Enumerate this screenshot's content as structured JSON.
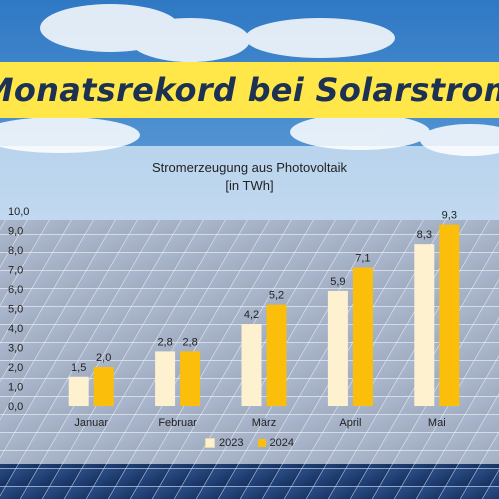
{
  "headline": "Monatsrekord bei Solarstrom",
  "colors": {
    "banner": "#ffe74a",
    "headline_text": "#1d3152",
    "series_2023": "#fdf1cf",
    "series_2024": "#fbbf0b"
  },
  "chart_data": {
    "type": "bar",
    "title": "Stromerzeugung  aus Photovoltaik",
    "subtitle": "[in TWh]",
    "categories": [
      "Januar",
      "Februar",
      "März",
      "April",
      "Mai"
    ],
    "series": [
      {
        "name": "2023",
        "values": [
          1.5,
          2.8,
          4.2,
          5.9,
          8.3
        ],
        "labels": [
          "1,5",
          "2,8",
          "4,2",
          "5,9",
          "8,3"
        ]
      },
      {
        "name": "2024",
        "values": [
          2.0,
          2.8,
          5.2,
          7.1,
          9.3
        ],
        "labels": [
          "2,0",
          "2,8",
          "5,2",
          "7,1",
          "9,3"
        ]
      }
    ],
    "ylim": [
      0,
      10
    ],
    "yticks": [
      "0,0",
      "1,0",
      "2,0",
      "3,0",
      "4,0",
      "5,0",
      "6,0",
      "7,0",
      "8,0",
      "9,0",
      "10,0"
    ],
    "legend_position": "bottom",
    "grid": false
  }
}
